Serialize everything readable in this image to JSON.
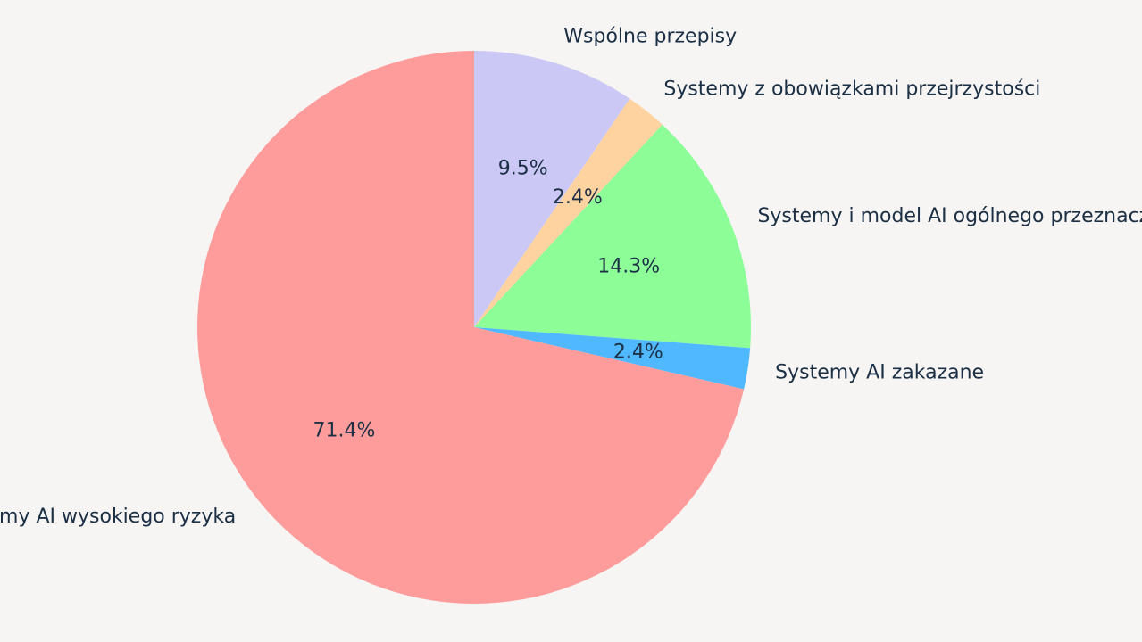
{
  "chart_data": {
    "type": "pie",
    "title": "",
    "start_angle_deg": 90,
    "direction": "clockwise",
    "slices": [
      {
        "label": "Wspólne przepisy",
        "value": 9.5,
        "pct_label": "9.5%",
        "color": "#cbc8f5"
      },
      {
        "label": "Systemy z obowiązkami przejrzystości",
        "value": 2.4,
        "pct_label": "2.4%",
        "color": "#fed3a0"
      },
      {
        "label": "Systemy i model AI ogólnego przeznaczenia",
        "value": 14.3,
        "pct_label": "14.3%",
        "color": "#8dfd98"
      },
      {
        "label": "Systemy AI zakazane",
        "value": 2.4,
        "pct_label": "2.4%",
        "color": "#4fb8fe"
      },
      {
        "label": "Systemy AI wysokiego ryzyka",
        "value": 71.4,
        "pct_label": "71.4%",
        "color": "#fe9c9c"
      }
    ]
  }
}
